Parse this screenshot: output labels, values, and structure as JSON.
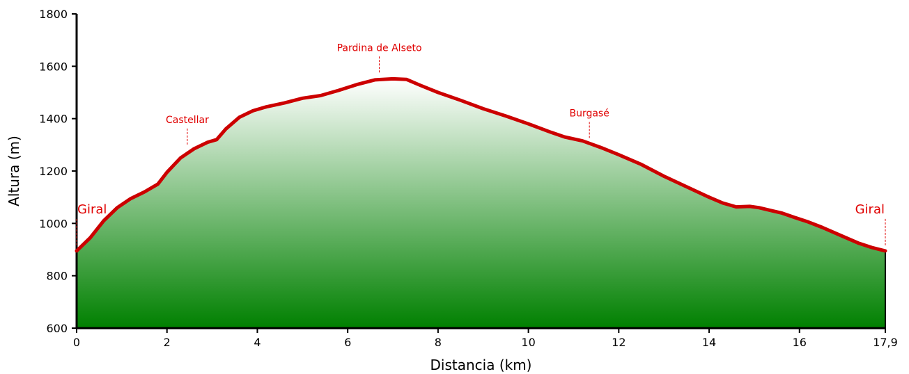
{
  "chart_data": {
    "type": "area",
    "xlabel": "Distancia (km)",
    "ylabel": "Altura (m)",
    "xlim": [
      0,
      17.9
    ],
    "ylim": [
      600,
      1800
    ],
    "x_ticks": [
      0,
      2,
      4,
      6,
      8,
      10,
      12,
      14,
      16,
      17.9
    ],
    "x_tick_labels": [
      "0",
      "2",
      "4",
      "6",
      "8",
      "10",
      "12",
      "14",
      "16",
      "17,9"
    ],
    "y_ticks": [
      600,
      800,
      1000,
      1200,
      1400,
      1600,
      1800
    ],
    "y_tick_labels": [
      "600",
      "800",
      "1000",
      "1200",
      "1400",
      "1600",
      "1800"
    ],
    "grid": false,
    "colors": {
      "line": "#cc0000",
      "fill_top": "#ffffff",
      "fill_bottom": "#008000",
      "annotation": "#e00000",
      "axis": "#000000"
    },
    "series": [
      {
        "x": [
          0,
          0.3,
          0.6,
          0.9,
          1.2,
          1.5,
          1.8,
          2.0,
          2.3,
          2.6,
          2.9,
          3.1,
          3.3,
          3.6,
          3.9,
          4.2,
          4.6,
          5.0,
          5.4,
          5.8,
          6.2,
          6.6,
          7.0,
          7.3,
          7.6,
          8.0,
          8.5,
          9.0,
          9.5,
          10.0,
          10.5,
          10.8,
          11.2,
          11.6,
          12.0,
          12.5,
          13.0,
          13.5,
          14.0,
          14.3,
          14.6,
          14.9,
          15.1,
          15.4,
          15.6,
          15.9,
          16.2,
          16.5,
          16.9,
          17.3,
          17.6,
          17.9
        ],
        "y": [
          895,
          945,
          1010,
          1060,
          1095,
          1120,
          1150,
          1195,
          1250,
          1285,
          1310,
          1320,
          1360,
          1405,
          1430,
          1445,
          1460,
          1478,
          1488,
          1508,
          1530,
          1548,
          1552,
          1550,
          1528,
          1500,
          1470,
          1438,
          1410,
          1380,
          1348,
          1330,
          1315,
          1290,
          1262,
          1225,
          1180,
          1140,
          1100,
          1078,
          1063,
          1065,
          1060,
          1048,
          1040,
          1022,
          1005,
          985,
          955,
          925,
          908,
          895
        ]
      }
    ],
    "annotations": [
      {
        "label": "Giral",
        "x": 0,
        "y": 895,
        "size": "large",
        "align": "start",
        "stem": 40
      },
      {
        "label": "Castellar",
        "x": 2.45,
        "y": 1280,
        "size": "small",
        "align": "middle",
        "stem": 25
      },
      {
        "label": "Pardina de Alseto",
        "x": 6.7,
        "y": 1555,
        "size": "small",
        "align": "middle",
        "stem": 25
      },
      {
        "label": "Burgasé",
        "x": 11.35,
        "y": 1305,
        "size": "small",
        "align": "middle",
        "stem": 25
      },
      {
        "label": "Giral",
        "x": 17.9,
        "y": 895,
        "size": "large",
        "align": "end",
        "stem": 40
      }
    ]
  }
}
